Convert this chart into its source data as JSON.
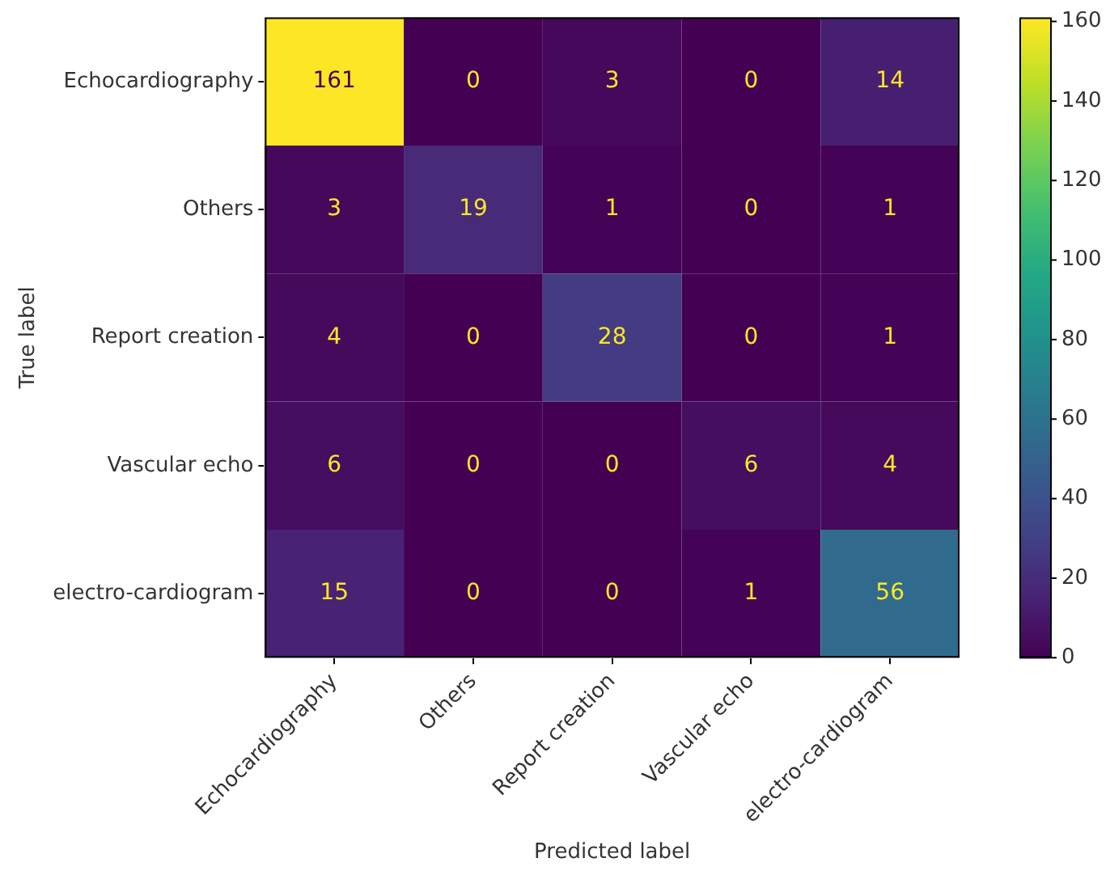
{
  "chart_data": {
    "type": "heatmap",
    "xlabel": "Predicted label",
    "ylabel": "True label",
    "categories": [
      "Echocardiography",
      "Others",
      "Report creation",
      "Vascular echo",
      "electro-cardiogram"
    ],
    "y_categories": [
      "Echocardiography",
      "Others",
      "Report creation",
      "Vascular echo",
      "electro-cardiogram"
    ],
    "cells": [
      [
        161,
        0,
        3,
        0,
        14
      ],
      [
        3,
        19,
        1,
        0,
        1
      ],
      [
        4,
        0,
        28,
        0,
        1
      ],
      [
        6,
        0,
        0,
        6,
        4
      ],
      [
        15,
        0,
        0,
        1,
        56
      ]
    ],
    "data_labels": true,
    "clim": [
      0,
      161
    ],
    "cticks": [
      0,
      20,
      40,
      60,
      80,
      100,
      120,
      140,
      160
    ]
  }
}
